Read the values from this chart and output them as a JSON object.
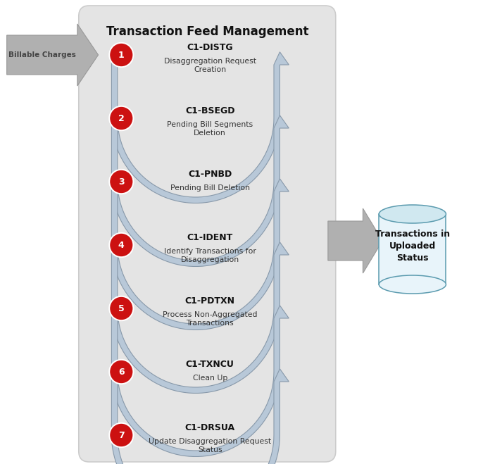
{
  "title": "Transaction Feed Management",
  "steps": [
    {
      "num": 1,
      "code": "C1-DISTG",
      "desc": "Disaggregation Request\nCreation"
    },
    {
      "num": 2,
      "code": "C1-BSEGD",
      "desc": "Pending Bill Segments\nDeletion"
    },
    {
      "num": 3,
      "code": "C1-PNBD",
      "desc": "Pending Bill Deletion"
    },
    {
      "num": 4,
      "code": "C1-IDENT",
      "desc": "Identify Transactions for\nDisaggregation"
    },
    {
      "num": 5,
      "code": "C1-PDTXN",
      "desc": "Process Non-Aggregated\nTransactions"
    },
    {
      "num": 6,
      "code": "C1-TXNCU",
      "desc": "Clean Up"
    },
    {
      "num": 7,
      "code": "C1-DRSUA",
      "desc": "Update Disaggregation Request\nStatus"
    }
  ],
  "circle_color": "#cc1111",
  "circle_edge_color": "#ffffff",
  "circle_text_color": "#ffffff",
  "arrow_fill": "#b8c8d8",
  "arrow_edge": "#8899aa",
  "box_bg": "#e4e4e4",
  "box_edge": "#cccccc",
  "billable_label": "Billable Charges",
  "billable_arrow_fill": "#b0b0b0",
  "billable_arrow_edge": "#999999",
  "right_arrow_fill": "#b0b0b0",
  "right_arrow_edge": "#999999",
  "db_label": "Transactions in\nUploaded\nStatus",
  "db_top_fill": "#d0e8f0",
  "db_body_fill": "#e8f4fa",
  "db_edge": "#5b9baf",
  "code_color": "#111111",
  "desc_color": "#333333"
}
